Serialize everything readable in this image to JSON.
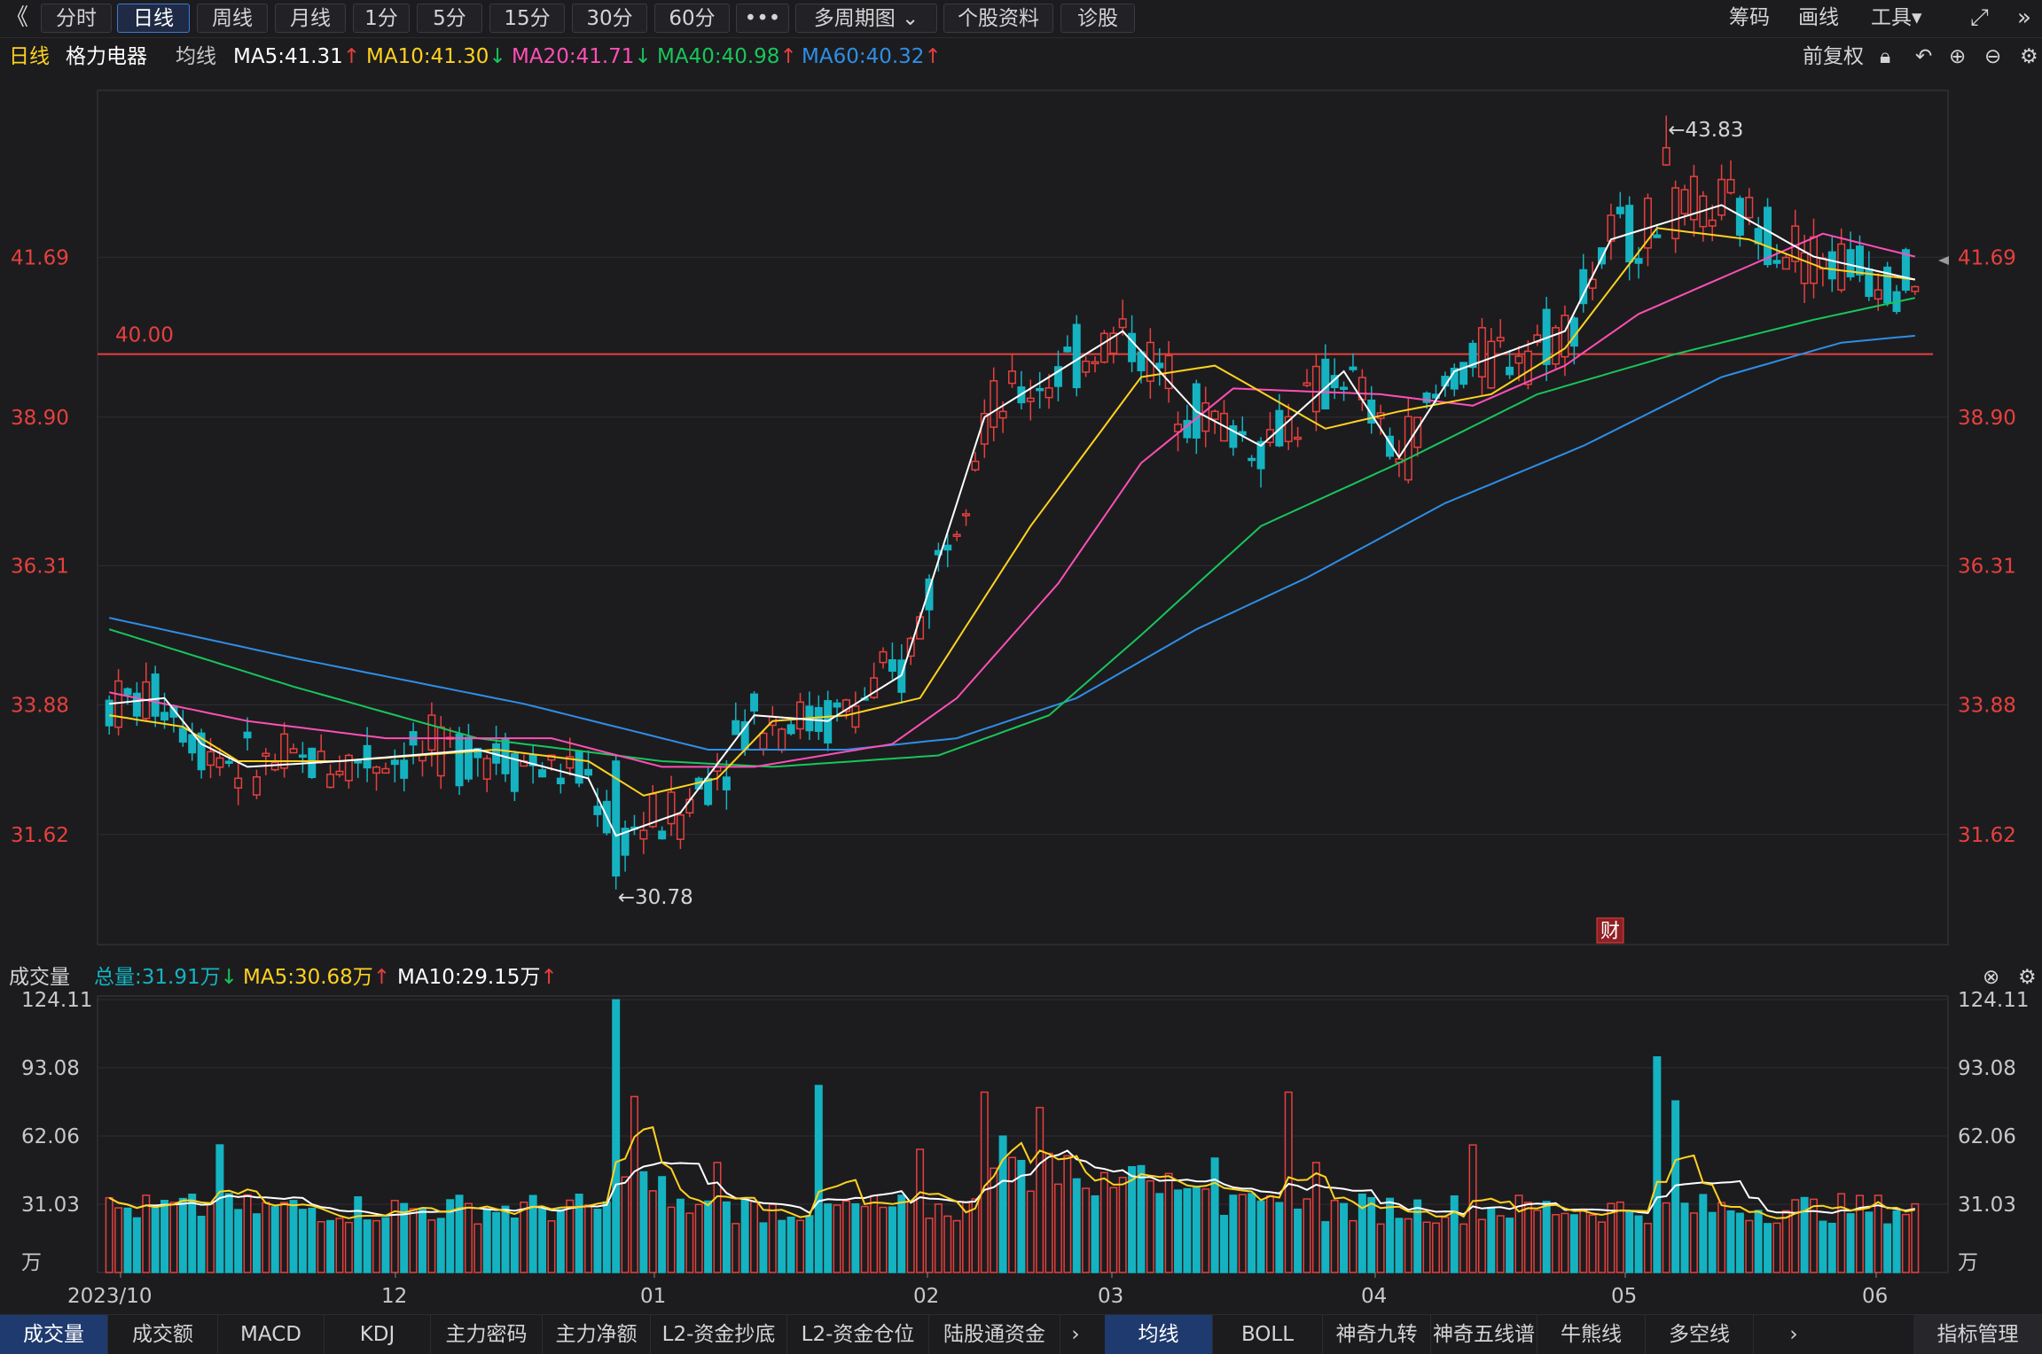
{
  "toolbar": {
    "back": "《",
    "tabs": [
      "分时",
      "日线",
      "周线",
      "月线",
      "1分",
      "5分",
      "15分",
      "30分",
      "60分",
      "•••",
      "多周期图 ⌄",
      "个股资料",
      "诊股"
    ],
    "active_tab": 1,
    "right": [
      "筹码",
      "画线",
      "工具▾"
    ]
  },
  "info": {
    "period": "日线",
    "stock": "格力电器",
    "ma_label": "均线",
    "ma5": "MA5:41.31",
    "ma10": "MA10:41.30",
    "ma20": "MA20:41.71",
    "ma40": "MA40:40.98",
    "ma60": "MA60:40.32",
    "adjust": "前复权"
  },
  "colors": {
    "up": "#e6403d",
    "down": "#15b3c1",
    "ma5": "#ffffff",
    "ma10": "#ffd21f",
    "ma20": "#ff4fb5",
    "ma40": "#18c65a",
    "ma60": "#2f8ee6",
    "grid": "#2e2e33",
    "axis_text": "#e6403d",
    "hline": "#e6403d"
  },
  "chart_data": {
    "type": "candlestick",
    "price_ticks": [
      "41.69",
      "38.90",
      "36.31",
      "33.88",
      "31.62"
    ],
    "price_tick_values": [
      41.69,
      38.9,
      36.31,
      33.88,
      31.62
    ],
    "ylim": [
      29.7,
      44.6
    ],
    "hline": {
      "value": 40.0,
      "label": "40.00"
    },
    "annotations": [
      {
        "label": "←43.83",
        "value": 43.83
      },
      {
        "label": "←30.78",
        "value": 30.78
      }
    ],
    "x_labels": [
      "2023/10",
      "12",
      "01",
      "02",
      "03",
      "04",
      "05",
      "06"
    ],
    "earnings_marker": "财",
    "ma5_points": [
      [
        0,
        33.9
      ],
      [
        6,
        34.0
      ],
      [
        10,
        33.2
      ],
      [
        15,
        32.8
      ],
      [
        25,
        32.9
      ],
      [
        40,
        33.1
      ],
      [
        52,
        32.6
      ],
      [
        55,
        31.6
      ],
      [
        62,
        32.0
      ],
      [
        70,
        33.7
      ],
      [
        78,
        33.6
      ],
      [
        86,
        34.4
      ],
      [
        95,
        38.9
      ],
      [
        110,
        40.4
      ],
      [
        118,
        39.0
      ],
      [
        125,
        38.4
      ],
      [
        134,
        39.7
      ],
      [
        140,
        38.2
      ],
      [
        146,
        39.7
      ],
      [
        158,
        40.4
      ],
      [
        163,
        42.0
      ],
      [
        175,
        42.6
      ],
      [
        185,
        41.7
      ],
      [
        196,
        41.3
      ]
    ],
    "ma10_points": [
      [
        0,
        33.7
      ],
      [
        8,
        33.5
      ],
      [
        14,
        32.9
      ],
      [
        25,
        32.9
      ],
      [
        42,
        33.1
      ],
      [
        52,
        32.9
      ],
      [
        58,
        32.3
      ],
      [
        66,
        32.6
      ],
      [
        72,
        33.6
      ],
      [
        80,
        33.7
      ],
      [
        88,
        34.0
      ],
      [
        100,
        37.0
      ],
      [
        112,
        39.6
      ],
      [
        120,
        39.8
      ],
      [
        132,
        38.7
      ],
      [
        140,
        39.0
      ],
      [
        150,
        39.3
      ],
      [
        158,
        40.1
      ],
      [
        168,
        42.2
      ],
      [
        178,
        42.0
      ],
      [
        186,
        41.5
      ],
      [
        196,
        41.3
      ]
    ],
    "ma20_points": [
      [
        0,
        34.1
      ],
      [
        15,
        33.6
      ],
      [
        30,
        33.3
      ],
      [
        48,
        33.3
      ],
      [
        60,
        32.8
      ],
      [
        70,
        32.8
      ],
      [
        85,
        33.2
      ],
      [
        92,
        34.0
      ],
      [
        103,
        36.0
      ],
      [
        112,
        38.1
      ],
      [
        122,
        39.4
      ],
      [
        138,
        39.3
      ],
      [
        148,
        39.1
      ],
      [
        158,
        39.8
      ],
      [
        166,
        40.7
      ],
      [
        176,
        41.4
      ],
      [
        186,
        42.1
      ],
      [
        196,
        41.7
      ]
    ],
    "ma40_points": [
      [
        0,
        35.2
      ],
      [
        20,
        34.2
      ],
      [
        40,
        33.3
      ],
      [
        60,
        32.9
      ],
      [
        72,
        32.8
      ],
      [
        90,
        33.0
      ],
      [
        102,
        33.7
      ],
      [
        112,
        35.1
      ],
      [
        125,
        37.0
      ],
      [
        140,
        38.1
      ],
      [
        155,
        39.3
      ],
      [
        170,
        40.0
      ],
      [
        185,
        40.6
      ],
      [
        196,
        40.98
      ]
    ],
    "ma60_points": [
      [
        0,
        35.4
      ],
      [
        20,
        34.7
      ],
      [
        45,
        33.9
      ],
      [
        65,
        33.1
      ],
      [
        80,
        33.1
      ],
      [
        92,
        33.3
      ],
      [
        105,
        34.0
      ],
      [
        118,
        35.2
      ],
      [
        130,
        36.1
      ],
      [
        145,
        37.4
      ],
      [
        160,
        38.4
      ],
      [
        175,
        39.6
      ],
      [
        188,
        40.2
      ],
      [
        196,
        40.32
      ]
    ],
    "vol_ticks": [
      "124.11",
      "93.08",
      "62.06",
      "31.03",
      "万"
    ],
    "vol_tick_values": [
      124.11,
      93.08,
      62.06,
      31.03,
      0
    ],
    "volume_max": 124.11
  },
  "volume": {
    "label": "成交量",
    "total": "总量:31.91万",
    "ma5": "MA5:30.68万",
    "ma10": "MA10:29.15万"
  },
  "bottom_left_tabs": [
    "成交量",
    "成交额",
    "MACD",
    "KDJ",
    "主力密码",
    "主力净额",
    "L2-资金抄底",
    "L2-资金仓位",
    "陆股通资金"
  ],
  "bottom_right_tabs": [
    "均线",
    "BOLL",
    "神奇九转",
    "神奇五线谱",
    "牛熊线",
    "多空线"
  ],
  "bottom_manage": "指标管理"
}
